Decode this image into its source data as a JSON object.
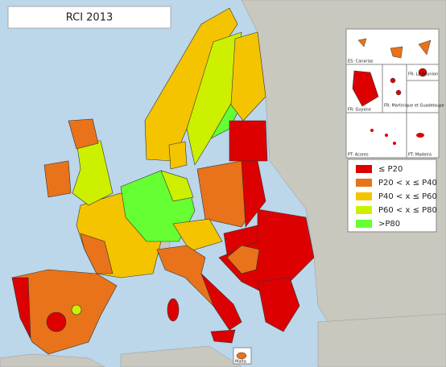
{
  "title": "RCI 2013",
  "legend": [
    {
      "label": "≤ P20",
      "color": "#dd0000"
    },
    {
      "label": "P20 < x ≤ P40",
      "color": "#e8731a"
    },
    {
      "label": "P40 < x ≤ P60",
      "color": "#f5c400"
    },
    {
      "label": "P60 < x ≤ P80",
      "color": "#ccf000"
    },
    {
      "label": ">P80",
      "color": "#66ff33"
    }
  ],
  "insets": [
    "ES: Canarias",
    "FR: La Réunion",
    "FR: Guyane",
    "FR: Martinique et Guadeloupe",
    "PT: Acores",
    "PT: Madeira"
  ],
  "malta": "Malta"
}
